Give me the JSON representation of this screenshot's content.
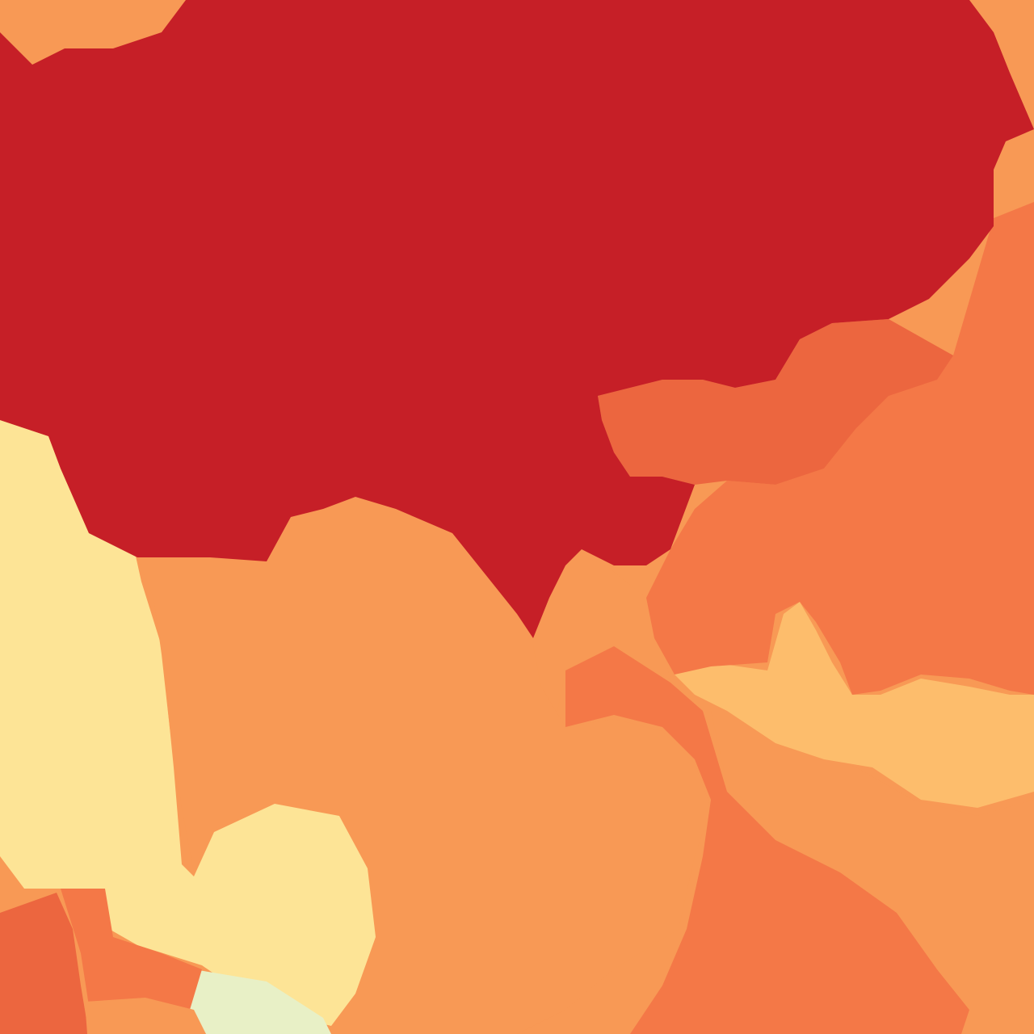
{
  "map": {
    "type": "choropleth",
    "palette": {
      "class_1": "#e8f0c6",
      "class_2": "#fde496",
      "class_3": "#fdbd6c",
      "class_4": "#f89955",
      "class_5": "#f47847",
      "class_6": "#ec663f",
      "class_7": "#c61f27"
    },
    "regions": [
      {
        "id": "region-north-central",
        "class": "class_7"
      },
      {
        "id": "region-northwest-corner",
        "class": "class_4"
      },
      {
        "id": "region-northeast-corner",
        "class": "class_4"
      },
      {
        "id": "region-west-strip",
        "class": "class_2"
      },
      {
        "id": "region-central",
        "class": "class_4"
      },
      {
        "id": "region-central-notch",
        "class": "class_4"
      },
      {
        "id": "region-east-band",
        "class": "class_6"
      },
      {
        "id": "region-east-large",
        "class": "class_5"
      },
      {
        "id": "region-east-lower-light",
        "class": "class_3"
      },
      {
        "id": "region-southeast",
        "class": "class_4"
      },
      {
        "id": "region-south-center",
        "class": "class_5"
      },
      {
        "id": "region-south-blob",
        "class": "class_2"
      },
      {
        "id": "region-southwest-red",
        "class": "class_6"
      },
      {
        "id": "region-southwest-orange",
        "class": "class_5"
      },
      {
        "id": "region-southwest-light",
        "class": "class_1"
      },
      {
        "id": "region-south-bottom",
        "class": "class_4"
      }
    ]
  }
}
